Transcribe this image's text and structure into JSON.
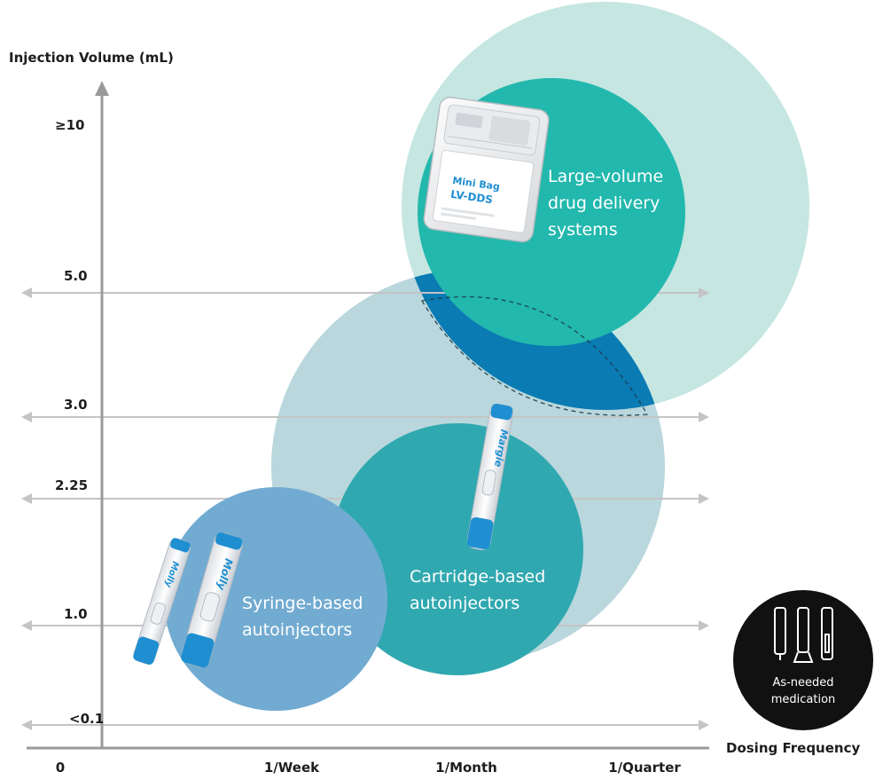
{
  "chart_data": {
    "type": "bubble",
    "y_axis_title": "Injection Volume (mL)",
    "x_axis_title": "Dosing Frequency",
    "y_ticks": [
      "<0.1",
      "1.0",
      "2.25",
      "3.0",
      "5.0",
      "≥10"
    ],
    "x_ticks": [
      "0",
      "1/Week",
      "1/Month",
      "1/Quarter"
    ],
    "bubbles": [
      {
        "label_lines": [
          "Large-volume",
          "drug delivery",
          "systems"
        ],
        "volume_range": [
          "5.0",
          "≥10"
        ],
        "frequency_range": [
          "1/Week",
          "1/Quarter"
        ],
        "color": "#22b8ad",
        "halo_color": "#c5e6e1"
      },
      {
        "label_lines": [
          "Cartridge-based",
          "autoinjectors"
        ],
        "volume_range": [
          "1.0",
          "3.0"
        ],
        "frequency_range": [
          "1/Week",
          "1/Quarter"
        ],
        "color": "#30a8b0",
        "halo_color": "#b9d7dc"
      },
      {
        "label_lines": [
          "Syringe-based",
          "autoinjectors"
        ],
        "volume_range": [
          "<0.1",
          "2.25"
        ],
        "frequency_range": [
          "0",
          "1/Month"
        ],
        "color": "#72abd1"
      }
    ],
    "overlap_region": {
      "between": [
        "Large-volume drug delivery systems",
        "Cartridge-based autoinjectors"
      ],
      "volume_range": [
        "3.0",
        "5.0"
      ],
      "color": "#0a7bb3"
    },
    "device_labels": {
      "bag_brand": "Mini Bag",
      "bag_model": "LV-DDS",
      "pen_brand_syringe": "Molly",
      "pen_brand_cartridge": "Margie"
    },
    "badge_lines": [
      "As-needed",
      "medication"
    ],
    "colors": {
      "axis": "#9a9a9a",
      "gridline": "#c4c4c4",
      "text": "#1d1d1d",
      "device_blue": "#1f8fd1",
      "badge_bg": "#111111"
    }
  }
}
